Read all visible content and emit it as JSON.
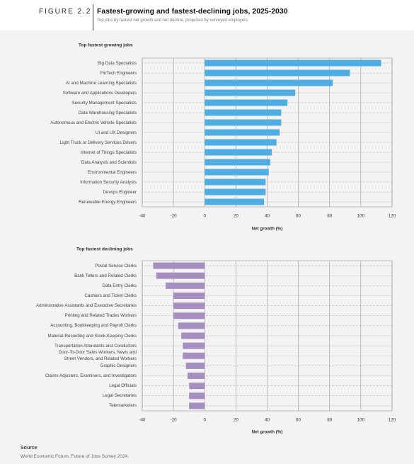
{
  "header": {
    "figure": "FIGURE 2.2",
    "title": "Fastest-growing and fastest-declining jobs, 2025-2030",
    "subtitle": "Top jobs by fastest net growth and net decline, projected by surveyed employers"
  },
  "chart_data": [
    {
      "type": "bar",
      "orientation": "horizontal",
      "title": "Top fastest growing jobs",
      "x_label": "Net growth (%)",
      "categories": [
        "Big Data Specialists",
        "FinTech Engineers",
        "AI and Machine Learning Specialists",
        "Software and Applications Developers",
        "Security Management Specialists",
        "Data Warehousing Specialists",
        "Autonomous and Electric Vehicle Specialists",
        "UI and UX Designers",
        "Light Truck or Delivery Services Drivers",
        "Internet of Things Specialists",
        "Data Analysts and Scientists",
        "Environmental Engineers",
        "Information Security Analysts",
        "Devops Engineer",
        "Renewable Energy Engineers"
      ],
      "values": [
        113,
        93,
        82,
        58,
        53,
        49,
        49,
        48,
        46,
        43,
        42,
        41,
        39,
        39,
        38
      ],
      "color": "#4eaee3",
      "xlim": [
        -40,
        120
      ],
      "xticks": [
        -40,
        -20,
        0,
        20,
        40,
        60,
        80,
        100,
        120
      ],
      "grid": true
    },
    {
      "type": "bar",
      "orientation": "horizontal",
      "title": "Top fastest declining jobs",
      "x_label": "Net growth (%)",
      "categories": [
        "Postal Service Clerks",
        "Bank Tellers and Related Clerks",
        "Data Entry Clerks",
        "Cashiers and Ticket Clerks",
        "Administrative Assistants and Executive Secretaries",
        "Printing and Related Trades Workers",
        "Accounting, Bookkeeping and Payroll Clerks",
        "Material-Recording and Stock-Keeping Clerks",
        "Transportation Attendants and Conductors",
        "Door-To-Door Sales Workers, News and Street Vendors, and Related Workers",
        "Graphic Designers",
        "Claims Adjusters, Examiners, and Investigators",
        "Legal Officials",
        "Legal Secretaries",
        "Telemarketers"
      ],
      "values": [
        -33,
        -31,
        -25,
        -20,
        -20,
        -20,
        -17,
        -15,
        -14,
        -14,
        -12,
        -11,
        -10,
        -10,
        -10
      ],
      "color": "#a68fc0",
      "xlim": [
        -40,
        120
      ],
      "xticks": [
        -40,
        -20,
        0,
        20,
        40,
        60,
        80,
        100,
        120
      ],
      "grid": true
    }
  ],
  "source": {
    "label": "Source",
    "text": "World Economic Forum, Future of Jobs Survey 2024."
  }
}
